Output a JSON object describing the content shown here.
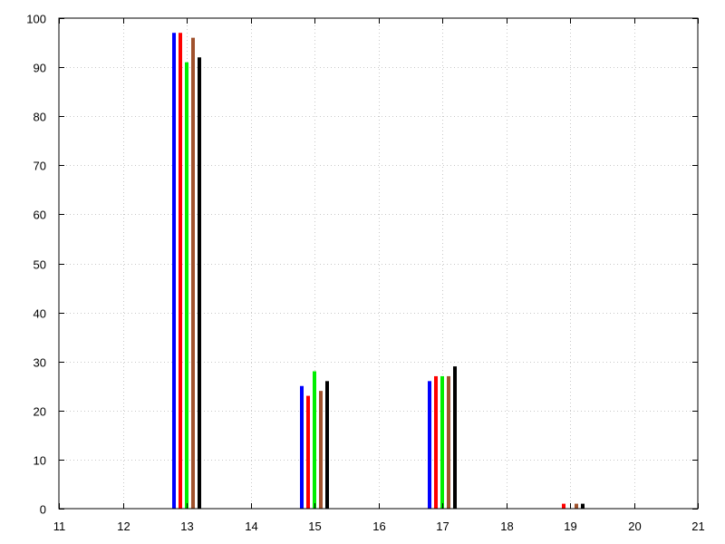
{
  "chart_data": {
    "type": "bar",
    "title": "",
    "xlabel": "",
    "ylabel": "",
    "xlim": [
      11,
      21
    ],
    "ylim": [
      0,
      100
    ],
    "xticks": [
      11,
      12,
      13,
      14,
      15,
      16,
      17,
      18,
      19,
      20,
      21
    ],
    "yticks": [
      0,
      10,
      20,
      30,
      40,
      50,
      60,
      70,
      80,
      90,
      100
    ],
    "grid": true,
    "legend": "none",
    "x": [
      13,
      15,
      17,
      19
    ],
    "series": [
      {
        "color": "#0000ff",
        "values": [
          97,
          25,
          26,
          0
        ]
      },
      {
        "color": "#ff0000",
        "values": [
          97,
          23,
          27,
          1
        ]
      },
      {
        "color": "#00ee00",
        "values": [
          91,
          28,
          27,
          0
        ]
      },
      {
        "color": "#a0522d",
        "values": [
          96,
          24,
          27,
          1
        ]
      },
      {
        "color": "#000000",
        "values": [
          92,
          26,
          29,
          1
        ]
      }
    ]
  }
}
